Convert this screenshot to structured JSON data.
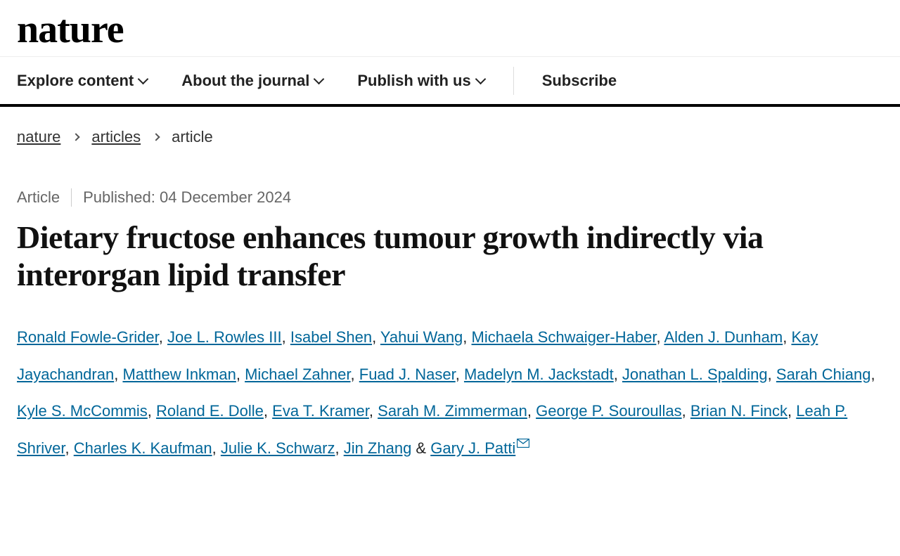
{
  "header": {
    "logo_text": "nature",
    "nav": {
      "explore": "Explore content",
      "about": "About the journal",
      "publish": "Publish with us",
      "subscribe": "Subscribe"
    }
  },
  "breadcrumb": {
    "root": "nature",
    "section": "articles",
    "current": "article"
  },
  "meta": {
    "type": "Article",
    "published_label": "Published: 04 December 2024"
  },
  "article": {
    "title": "Dietary fructose enhances tumour growth indirectly via interorgan lipid transfer"
  },
  "authors_sep": ", ",
  "authors_last_sep": " & ",
  "authors_corresponding_index": 23,
  "authors": [
    "Ronald Fowle-Grider",
    "Joe L. Rowles III",
    "Isabel Shen",
    "Yahui Wang",
    "Michaela Schwaiger-Haber",
    "Alden J. Dunham",
    "Kay Jayachandran",
    "Matthew Inkman",
    "Michael Zahner",
    "Fuad J. Naser",
    "Madelyn M. Jackstadt",
    "Jonathan L. Spalding",
    "Sarah Chiang",
    "Kyle S. McCommis",
    "Roland E. Dolle",
    "Eva T. Kramer",
    "Sarah M. Zimmerman",
    "George P. Souroullas",
    "Brian N. Finck",
    "Leah P. Shriver",
    "Charles K. Kaufman",
    "Julie K. Schwarz",
    "Jin Zhang",
    "Gary J. Patti"
  ],
  "colors": {
    "link": "#006699",
    "text": "#222222",
    "muted": "#666666",
    "border_bottom": "#000000"
  }
}
